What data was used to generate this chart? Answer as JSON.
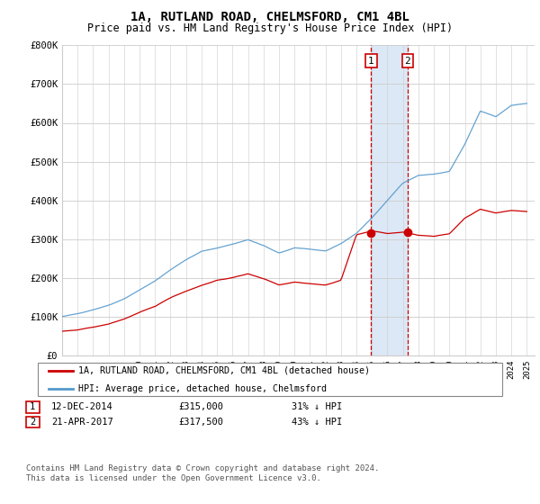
{
  "title": "1A, RUTLAND ROAD, CHELMSFORD, CM1 4BL",
  "subtitle": "Price paid vs. HM Land Registry's House Price Index (HPI)",
  "ylabel_ticks": [
    "£0",
    "£100K",
    "£200K",
    "£300K",
    "£400K",
    "£500K",
    "£600K",
    "£700K",
    "£800K"
  ],
  "ylim": [
    0,
    800000
  ],
  "xlim_start": 1995.0,
  "xlim_end": 2025.5,
  "sale1_year": 2014.95,
  "sale1_price": 315000,
  "sale1_label": "1",
  "sale2_year": 2017.3,
  "sale2_price": 317500,
  "sale2_label": "2",
  "shade_color": "#dce8f5",
  "vline_color": "#cc0000",
  "property_color": "#cc0000",
  "hpi_color": "#5599cc",
  "legend_property": "1A, RUTLAND ROAD, CHELMSFORD, CM1 4BL (detached house)",
  "legend_hpi": "HPI: Average price, detached house, Chelmsford",
  "footnote1": "Contains HM Land Registry data © Crown copyright and database right 2024.",
  "footnote2": "This data is licensed under the Open Government Licence v3.0.",
  "table_row1": [
    "1",
    "12-DEC-2014",
    "£315,000",
    "31% ↓ HPI"
  ],
  "table_row2": [
    "2",
    "21-APR-2017",
    "£317,500",
    "43% ↓ HPI"
  ],
  "background_color": "#ffffff",
  "plot_bg_color": "#ffffff",
  "grid_color": "#cccccc"
}
